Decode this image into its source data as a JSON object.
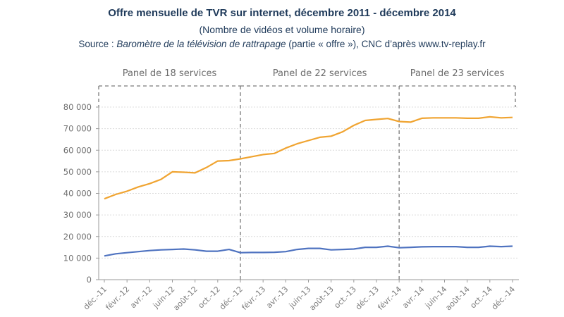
{
  "chart_data": {
    "type": "line",
    "title": "Offre mensuelle de TVR sur internet, décembre 2011 - décembre 2014",
    "subtitle": "(Nombre de vidéos et volume horaire)",
    "source": {
      "prefix": "Source : ",
      "italic": "Baromètre de la télévision de rattrapage",
      "suffix": " (partie « offre »), CNC d’après www.tv-replay.fr"
    },
    "xlabel": "",
    "ylabel": "",
    "ylim": [
      0,
      80000
    ],
    "yticks": [
      0,
      10000,
      20000,
      30000,
      40000,
      50000,
      60000,
      70000,
      80000
    ],
    "ytick_labels": [
      "0",
      "10 000",
      "20 000",
      "30 000",
      "40 000",
      "50 000",
      "60 000",
      "70 000",
      "80 000"
    ],
    "grid": true,
    "x": [
      "déc.-11",
      "janv.-12",
      "févr.-12",
      "mars-12",
      "avr.-12",
      "mai-12",
      "juin-12",
      "juil.-12",
      "août-12",
      "sept.-12",
      "oct.-12",
      "nov.-12",
      "déc.-12",
      "janv.-13",
      "févr.-13",
      "mars-13",
      "avr.-13",
      "mai-13",
      "juin-13",
      "juil.-13",
      "août-13",
      "sept.-13",
      "oct.-13",
      "nov.-13",
      "déc.-13",
      "janv.-14",
      "févr.-14",
      "mars-14",
      "avr.-14",
      "mai-14",
      "juin-14",
      "juil.-14",
      "août-14",
      "sept.-14",
      "oct.-14",
      "nov.-14",
      "déc.-14"
    ],
    "xtick_labels": [
      "déc.-11",
      "févr.-12",
      "avr.-12",
      "juin-12",
      "août-12",
      "oct.-12",
      "déc.-12",
      "févr.-13",
      "avr.-13",
      "juin-13",
      "août-13",
      "oct.-13",
      "déc.-13",
      "févr.-14",
      "avr.-14",
      "juin-14",
      "août-14",
      "oct.-14",
      "déc.-14"
    ],
    "series": [
      {
        "name": "Nombre de vidéos",
        "color": "#f0a431",
        "values": [
          37500,
          39500,
          41000,
          43000,
          44500,
          46500,
          50000,
          49800,
          49500,
          52000,
          55000,
          55200,
          56000,
          57000,
          58000,
          58500,
          61000,
          63000,
          64500,
          66000,
          66500,
          68500,
          71500,
          73800,
          74300,
          74700,
          73300,
          73000,
          74800,
          75000,
          75000,
          75000,
          74800,
          74800,
          75500,
          75000,
          75200
        ]
      },
      {
        "name": "Volume horaire",
        "color": "#4f73c0",
        "values": [
          11000,
          12000,
          12500,
          13000,
          13500,
          13800,
          14000,
          14200,
          13800,
          13200,
          13200,
          14000,
          12500,
          12600,
          12600,
          12700,
          13000,
          14000,
          14500,
          14500,
          13800,
          14000,
          14200,
          15000,
          15000,
          15500,
          14800,
          15000,
          15200,
          15300,
          15300,
          15300,
          15000,
          15000,
          15500,
          15300,
          15500
        ]
      }
    ],
    "panels": [
      {
        "label": "Panel de 18 services",
        "from": "déc.-11",
        "to": "déc.-12"
      },
      {
        "label": "Panel de 22 services",
        "from": "déc.-12",
        "to": "févr.-14"
      },
      {
        "label": "Panel de 23 services",
        "from": "févr.-14",
        "to": "déc.-14"
      }
    ],
    "legend": "none"
  }
}
